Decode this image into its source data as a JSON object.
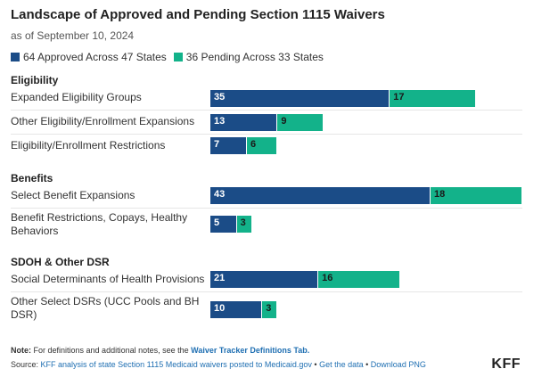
{
  "header": {
    "title": "Landscape of Approved and Pending Section 1115 Waivers",
    "subtitle": "as of September 10, 2024"
  },
  "legend": {
    "approved": "64 Approved Across 47 States",
    "pending": "36 Pending Across 33 States"
  },
  "colors": {
    "approved": "#1b4c87",
    "pending": "#13b28a"
  },
  "chart_data": {
    "type": "bar",
    "orientation": "horizontal",
    "stacked": true,
    "title": "Landscape of Approved and Pending Section 1115 Waivers",
    "subtitle": "as of September 10, 2024",
    "series_names": [
      "64 Approved Across 47 States",
      "36 Pending Across 33 States"
    ],
    "groups": [
      {
        "name": "Eligibility",
        "rows": [
          {
            "label": "Expanded Eligibility Groups",
            "approved": 35,
            "pending": 17
          },
          {
            "label": "Other Eligibility/Enrollment Expansions",
            "approved": 13,
            "pending": 9
          },
          {
            "label": "Eligibility/Enrollment Restrictions",
            "approved": 7,
            "pending": 6
          }
        ]
      },
      {
        "name": "Benefits",
        "rows": [
          {
            "label": "Select Benefit Expansions",
            "approved": 43,
            "pending": 18
          },
          {
            "label": "Benefit Restrictions, Copays, Healthy Behaviors",
            "approved": 5,
            "pending": 3
          }
        ]
      },
      {
        "name": "SDOH & Other DSR",
        "rows": [
          {
            "label": "Social Determinants of Health Provisions",
            "approved": 21,
            "pending": 16
          },
          {
            "label": "Other Select DSRs (UCC Pools and BH DSR)",
            "approved": 10,
            "pending": 3
          }
        ]
      }
    ],
    "xlim": [
      0,
      61
    ]
  },
  "footer": {
    "note_prefix": "Note:",
    "note_text": "For definitions and additional notes, see the",
    "note_link": "Waiver Tracker Definitions Tab.",
    "source_prefix": "Source:",
    "source_link": "KFF analysis of state Section 1115 Medicaid waivers posted to Medicaid.gov",
    "sep1": "•",
    "get_data": "Get the data",
    "sep2": "•",
    "download": "Download PNG",
    "logo": "KFF"
  }
}
